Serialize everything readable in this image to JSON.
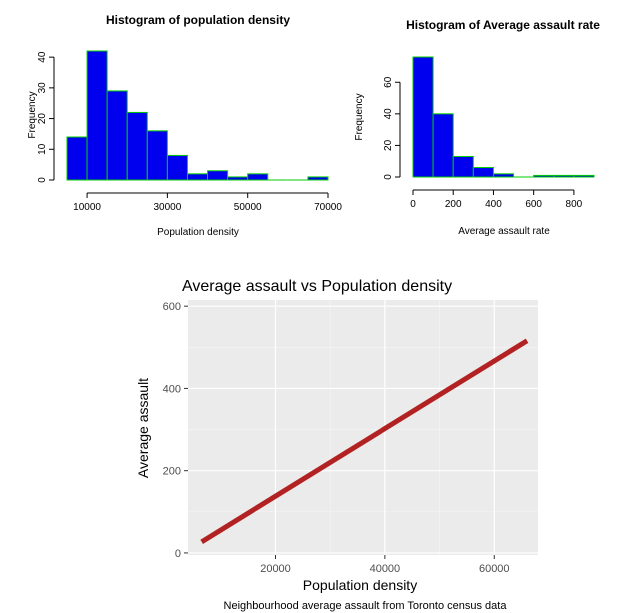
{
  "chart_data": [
    {
      "type": "bar",
      "subtype": "histogram",
      "title": "Histogram of population density",
      "xlabel": "Population density",
      "ylabel": "Frequency",
      "bin_edges": [
        5000,
        10000,
        15000,
        20000,
        25000,
        30000,
        35000,
        40000,
        45000,
        50000,
        55000,
        60000,
        65000,
        70000
      ],
      "values": [
        14,
        42,
        29,
        22,
        16,
        8,
        2,
        3,
        1,
        2,
        0,
        0,
        1
      ],
      "xlim": [
        5000,
        70000
      ],
      "ylim": [
        0,
        42
      ],
      "x_ticks": [
        10000,
        30000,
        50000,
        70000
      ],
      "x_tick_labels": [
        "10000",
        "30000",
        "50000",
        "70000"
      ],
      "y_ticks": [
        0,
        10,
        20,
        30,
        40
      ],
      "y_tick_labels": [
        "0",
        "10",
        "20",
        "30",
        "40"
      ],
      "bar_color": "#0000ee",
      "border_color": "#00cc00",
      "grid": false
    },
    {
      "type": "bar",
      "subtype": "histogram",
      "title": "Histogram of Average assault rate",
      "xlabel": "Average assault rate",
      "ylabel": "Frequency",
      "bin_edges": [
        0,
        100,
        200,
        300,
        400,
        500,
        600,
        700,
        800,
        900
      ],
      "values": [
        76,
        40,
        13,
        6,
        2,
        0,
        1,
        1,
        1
      ],
      "xlim": [
        0,
        900
      ],
      "ylim": [
        0,
        76
      ],
      "x_ticks": [
        0,
        200,
        400,
        600,
        800
      ],
      "x_tick_labels": [
        "0",
        "200",
        "400",
        "600",
        "800"
      ],
      "y_ticks": [
        0,
        20,
        40,
        60
      ],
      "y_tick_labels": [
        "0",
        "20",
        "40",
        "60"
      ],
      "bar_color": "#0000ee",
      "border_color": "#00cc00",
      "grid": false
    },
    {
      "type": "line",
      "title": "Average assault vs Population density",
      "xlabel": "Population density",
      "ylabel": "Average assault",
      "caption": "Neighbourhood average assault from Toronto census data",
      "series": [
        {
          "x": [
            6500,
            66000
          ],
          "y": [
            27,
            516
          ],
          "color": "#b22222"
        }
      ],
      "xlim": [
        4000,
        68000
      ],
      "ylim": [
        -5,
        615
      ],
      "x_ticks": [
        20000,
        40000,
        60000
      ],
      "x_tick_labels": [
        "20000",
        "40000",
        "60000"
      ],
      "y_ticks": [
        0,
        200,
        400,
        600
      ],
      "y_tick_labels": [
        "0",
        "200",
        "400",
        "600"
      ],
      "panel_color": "#ebebeb",
      "grid": true
    }
  ]
}
